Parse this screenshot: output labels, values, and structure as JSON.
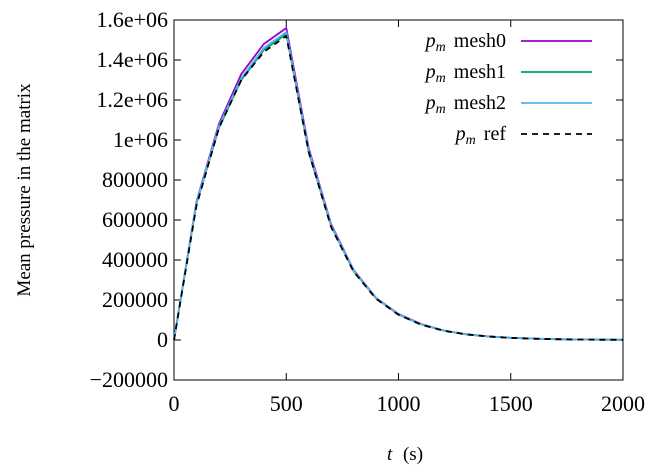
{
  "chart_data": {
    "type": "line",
    "title": "",
    "xlabel_var": "t",
    "xlabel_unit": "(s)",
    "ylabel": "Mean pressure in the matrix",
    "xlim": [
      0,
      2000
    ],
    "ylim": [
      -200000,
      1600000
    ],
    "x_ticks": [
      0,
      500,
      1000,
      1500,
      2000
    ],
    "x_tick_labels": [
      "0",
      "500",
      "1000",
      "1500",
      "2000"
    ],
    "y_ticks": [
      -200000,
      0,
      200000,
      400000,
      600000,
      800000,
      1000000,
      1200000,
      1400000,
      1600000
    ],
    "y_tick_labels": [
      "−200000",
      "0",
      "200000",
      "400000",
      "600000",
      "800000",
      "1e+06",
      "1.2e+06",
      "1.4e+06",
      "1.6e+06"
    ],
    "grid": false,
    "legend_position": "top-right",
    "legend_symbol": "p",
    "legend_subscript": "m",
    "series": [
      {
        "name": "mesh0",
        "color": "#9400d3",
        "dash": "solid",
        "x": [
          0,
          100,
          200,
          300,
          400,
          500,
          600,
          700,
          800,
          900,
          1000,
          1100,
          1200,
          1300,
          1400,
          1500,
          1600,
          1700,
          1800,
          1900,
          2000
        ],
        "y": [
          0,
          690000,
          1080000,
          1330000,
          1480000,
          1560000,
          960000,
          580000,
          350000,
          210000,
          130000,
          80000,
          48000,
          29000,
          18000,
          11000,
          7000,
          4000,
          2500,
          1500,
          900
        ]
      },
      {
        "name": "mesh1",
        "color": "#009e73",
        "dash": "solid",
        "x": [
          0,
          100,
          200,
          300,
          400,
          500,
          600,
          700,
          800,
          900,
          1000,
          1100,
          1200,
          1300,
          1400,
          1500,
          1600,
          1700,
          1800,
          1900,
          2000
        ],
        "y": [
          0,
          680000,
          1060000,
          1300000,
          1450000,
          1530000,
          940000,
          570000,
          345000,
          208000,
          127000,
          78000,
          47000,
          28500,
          17500,
          10700,
          6800,
          3900,
          2400,
          1450,
          870
        ]
      },
      {
        "name": "mesh2",
        "color": "#56b4e9",
        "dash": "solid",
        "x": [
          0,
          100,
          200,
          300,
          400,
          500,
          600,
          700,
          800,
          900,
          1000,
          1100,
          1200,
          1300,
          1400,
          1500,
          1600,
          1700,
          1800,
          1900,
          2000
        ],
        "y": [
          0,
          685000,
          1070000,
          1310000,
          1460000,
          1540000,
          950000,
          575000,
          348000,
          209000,
          128000,
          79000,
          47500,
          28700,
          17700,
          10800,
          6900,
          3950,
          2450,
          1470,
          880
        ]
      },
      {
        "name": "ref",
        "color": "#000000",
        "dash": "dashed",
        "x": [
          0,
          100,
          200,
          300,
          400,
          500,
          600,
          700,
          800,
          900,
          1000,
          1100,
          1200,
          1300,
          1400,
          1500,
          1600,
          1700,
          1800,
          1900,
          2000
        ],
        "y": [
          0,
          670000,
          1060000,
          1300000,
          1440000,
          1520000,
          940000,
          565000,
          342000,
          206000,
          126000,
          77000,
          46500,
          28200,
          17300,
          10600,
          6700,
          3850,
          2380,
          1430,
          860
        ]
      }
    ]
  }
}
